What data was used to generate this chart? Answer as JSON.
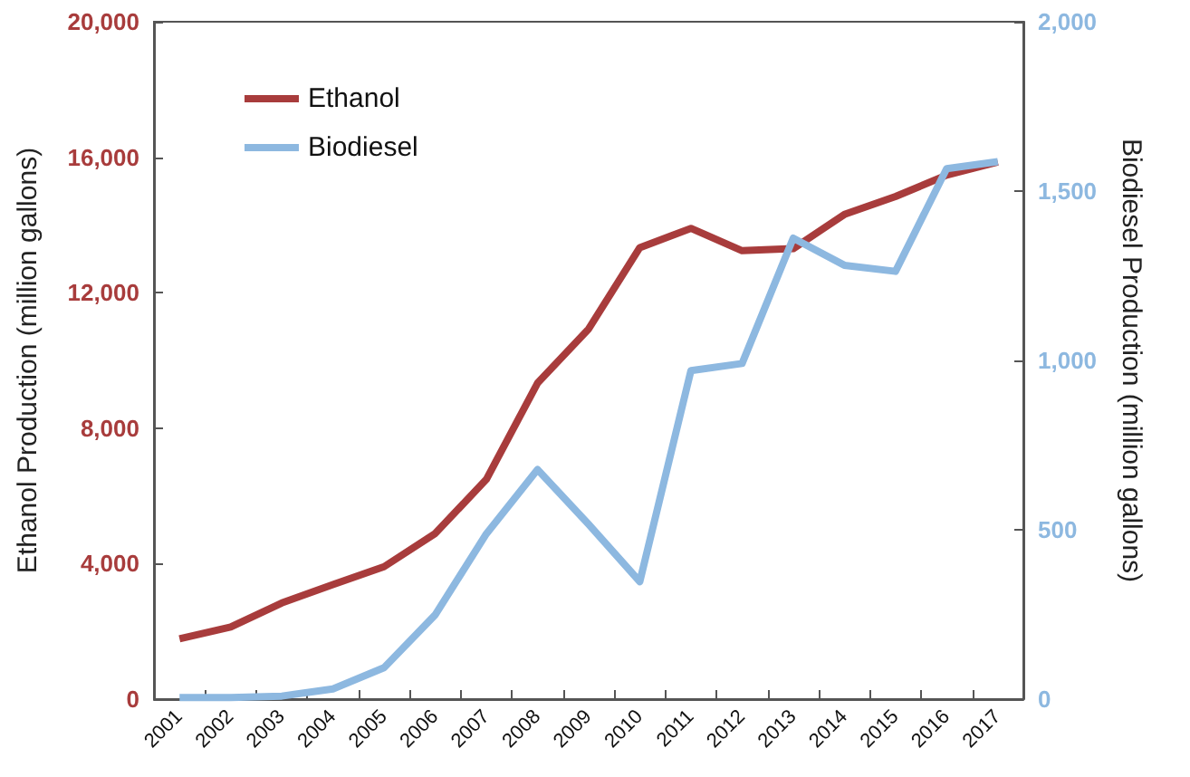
{
  "chart_data": {
    "type": "line",
    "ylabel": "Ethanol Production (million gallons)",
    "y2label": "Biodiesel Production (million gallons)",
    "categories": [
      "2001",
      "2002",
      "2003",
      "2004",
      "2005",
      "2006",
      "2007",
      "2008",
      "2009",
      "2010",
      "2011",
      "2012",
      "2013",
      "2014",
      "2015",
      "2016",
      "2017"
    ],
    "series": [
      {
        "name": "Ethanol",
        "color": "#a83c3c",
        "values": [
          1780,
          2130,
          2840,
          3380,
          3910,
          4890,
          6490,
          9330,
          10930,
          13330,
          13900,
          13240,
          13300,
          14310,
          14840,
          15470,
          15860
        ]
      },
      {
        "name": "Biodiesel",
        "color": "#8db8e0",
        "axis": "y2",
        "values": [
          5,
          5,
          9,
          30,
          93,
          249,
          488,
          678,
          516,
          347,
          970,
          991,
          1361,
          1281,
          1263,
          1566,
          1587
        ]
      }
    ],
    "ylim": [
      0,
      20000
    ],
    "yticks": [
      {
        "value": 0,
        "label": "0"
      },
      {
        "value": 4000,
        "label": "4,000"
      },
      {
        "value": 8000,
        "label": "8,000"
      },
      {
        "value": 12000,
        "label": "12,000"
      },
      {
        "value": 16000,
        "label": "16,000"
      },
      {
        "value": 20000,
        "label": "20,000"
      }
    ],
    "y2lim": [
      0,
      2000
    ],
    "y2ticks": [
      {
        "value": 0,
        "label": "0"
      },
      {
        "value": 500,
        "label": "500"
      },
      {
        "value": 1000,
        "label": "1,000"
      },
      {
        "value": 1500,
        "label": "1,500"
      },
      {
        "value": 2000,
        "label": "2,000"
      }
    ],
    "grid": false,
    "legend": "top left",
    "marker": "none",
    "line_style": "solid"
  }
}
